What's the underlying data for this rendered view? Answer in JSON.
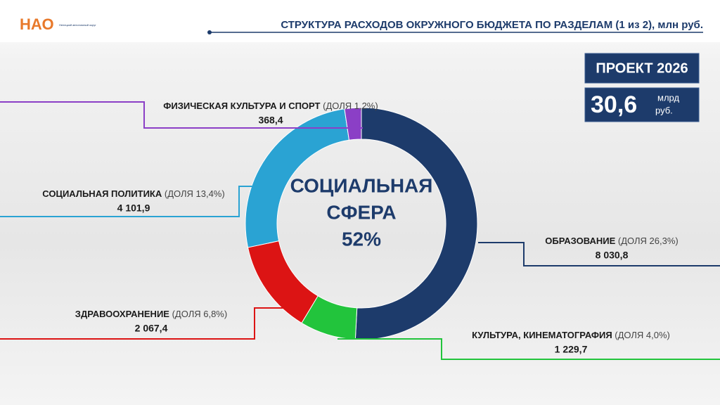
{
  "header": {
    "logo": "НАО",
    "logo_caption": "Ненецкий автономный округ",
    "title": "СТРУКТУРА РАСХОДОВ ОКРУЖНОГО БЮДЖЕТА ПО РАЗДЕЛАМ (1 из 2), млн руб."
  },
  "badge": {
    "title": "ПРОЕКТ 2026",
    "amount": "30,6",
    "unit_line1": "млрд",
    "unit_line2": "руб."
  },
  "chart_data": {
    "type": "donut",
    "categories": [
      "ОБРАЗОВАНИЕ",
      "КУЛЬТУРА, КИНЕМАТОГРАФИЯ",
      "ЗДРАВООХРАНЕНИЕ",
      "СОЦИАЛЬНАЯ ПОЛИТИКА",
      "ФИЗИЧЕСКАЯ КУЛЬТУРА И СПОРТ"
    ],
    "share_labels": [
      "(ДОЛЯ 26,3%)",
      "(ДОЛЯ 4,0%)",
      "(ДОЛЯ 6,8%)",
      "(ДОЛЯ 13,4%)",
      "(ДОЛЯ 1,2%)"
    ],
    "values": [
      8030.8,
      1229.7,
      2067.4,
      4101.9,
      368.4
    ],
    "value_labels": [
      "8 030,8",
      "1 229,7",
      "2 067,4",
      "4 101,9",
      "368,4"
    ],
    "colors": [
      "#1d3b6b",
      "#22c43c",
      "#dc1414",
      "#2aa3d3",
      "#8b3fc6"
    ],
    "center_label": [
      "СОЦИАЛЬНАЯ",
      "СФЕРА",
      "52%"
    ]
  }
}
